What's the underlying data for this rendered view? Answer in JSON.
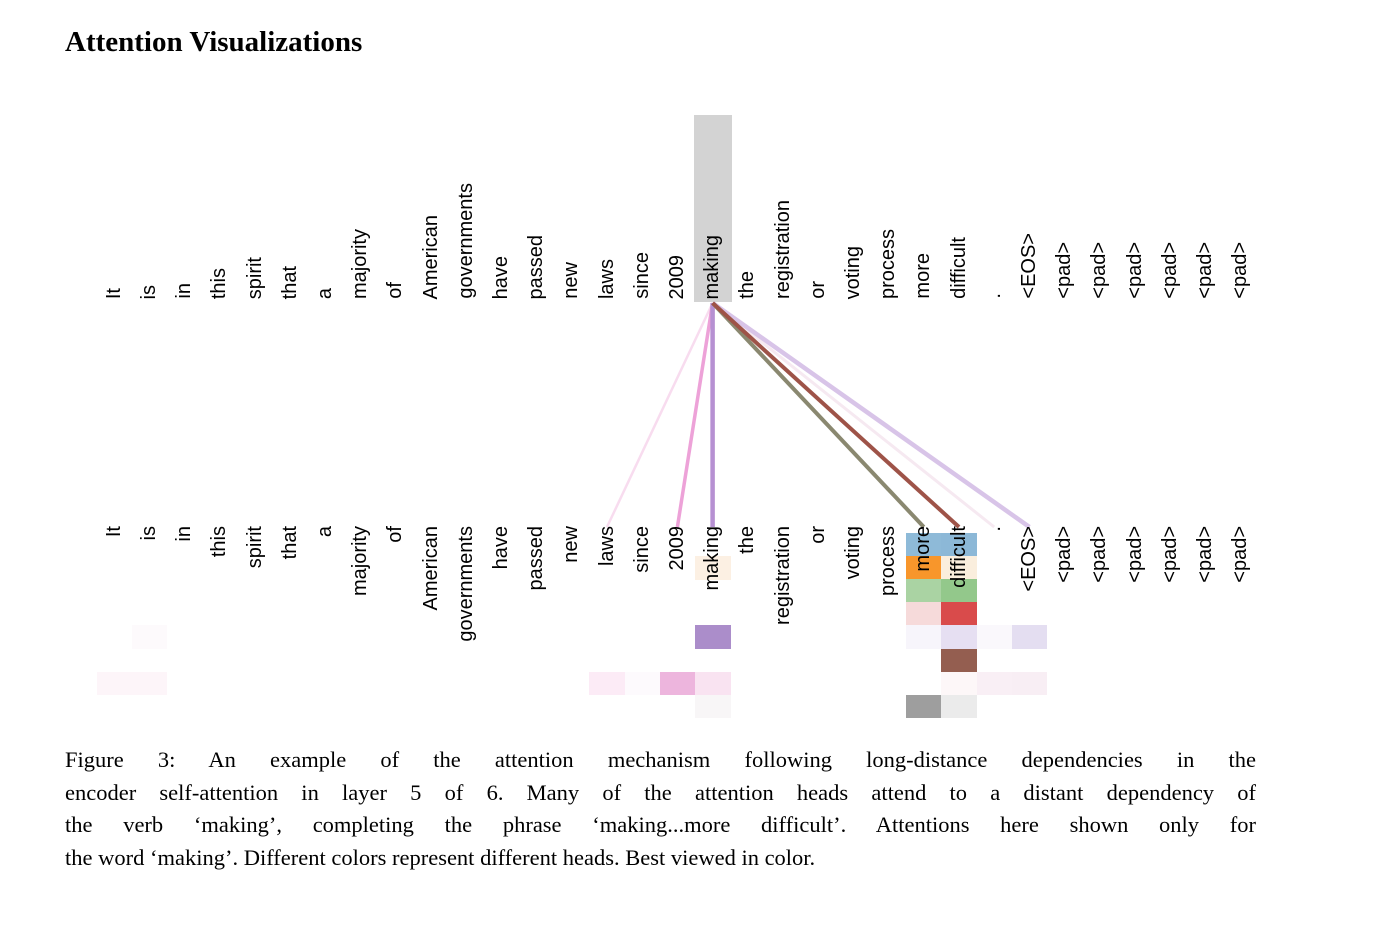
{
  "page_title": "Attention Visualizations",
  "chart_data": {
    "type": "heatmap",
    "description": "Encoder self-attention line/grid visualization for the word 'making'",
    "tokens": [
      "It",
      "is",
      "in",
      "this",
      "spirit",
      "that",
      "a",
      "majority",
      "of",
      "American",
      "governments",
      "have",
      "passed",
      "new",
      "laws",
      "since",
      "2009",
      "making",
      "the",
      "registration",
      "or",
      "voting",
      "process",
      "more",
      "difficult",
      ".",
      "<EOS>",
      "<pad>",
      "<pad>",
      "<pad>",
      "<pad>",
      "<pad>",
      "<pad>"
    ],
    "focus": {
      "token": "making",
      "index": 17,
      "highlight_color": "#d3d3d3"
    },
    "heads": [
      {
        "name": "head-1",
        "color": "#1f77b4"
      },
      {
        "name": "head-2",
        "color": "#ff7f0e"
      },
      {
        "name": "head-3",
        "color": "#2ca02c"
      },
      {
        "name": "head-4",
        "color": "#d62728"
      },
      {
        "name": "head-5",
        "color": "#9467bd"
      },
      {
        "name": "head-6",
        "color": "#8c564b"
      },
      {
        "name": "head-7",
        "color": "#e377c2"
      },
      {
        "name": "head-8",
        "color": "#7f7f7f"
      }
    ],
    "cells": [
      {
        "r": 0,
        "c": 23,
        "color": "#8ebad8"
      },
      {
        "r": 0,
        "c": 24,
        "color": "#8cb8d7"
      },
      {
        "r": 1,
        "c": 17,
        "color": "#fcf0e3"
      },
      {
        "r": 1,
        "c": 23,
        "color": "#f8962b"
      },
      {
        "r": 1,
        "c": 24,
        "color": "#faeedd"
      },
      {
        "r": 2,
        "c": 23,
        "color": "#aad3a3"
      },
      {
        "r": 2,
        "c": 24,
        "color": "#93c88b"
      },
      {
        "r": 3,
        "c": 23,
        "color": "#f6dada"
      },
      {
        "r": 3,
        "c": 24,
        "color": "#d94b4b"
      },
      {
        "r": 4,
        "c": 1,
        "color": "#fdfafc"
      },
      {
        "r": 4,
        "c": 17,
        "color": "#ab8dca"
      },
      {
        "r": 4,
        "c": 23,
        "color": "#f7f5fb"
      },
      {
        "r": 4,
        "c": 24,
        "color": "#e6dff2"
      },
      {
        "r": 4,
        "c": 25,
        "color": "#faf8fc"
      },
      {
        "r": 4,
        "c": 26,
        "color": "#e4def1"
      },
      {
        "r": 5,
        "c": 24,
        "color": "#945e50"
      },
      {
        "r": 6,
        "c": 0,
        "color": "#fdf5f9"
      },
      {
        "r": 6,
        "c": 1,
        "color": "#fdf5f9"
      },
      {
        "r": 6,
        "c": 14,
        "color": "#fcebf6"
      },
      {
        "r": 6,
        "c": 15,
        "color": "#fdfafd"
      },
      {
        "r": 6,
        "c": 16,
        "color": "#edb5dd"
      },
      {
        "r": 6,
        "c": 17,
        "color": "#f9e3f1"
      },
      {
        "r": 6,
        "c": 24,
        "color": "#fdf7f8"
      },
      {
        "r": 6,
        "c": 25,
        "color": "#f9eff5"
      },
      {
        "r": 6,
        "c": 26,
        "color": "#f8eef4"
      },
      {
        "r": 7,
        "c": 17,
        "color": "#f8f6f7"
      },
      {
        "r": 7,
        "c": 23,
        "color": "#9e9e9e"
      },
      {
        "r": 7,
        "c": 24,
        "color": "#ebebeb"
      }
    ],
    "lines": [
      {
        "from": 17,
        "to": 25,
        "to_token": ".",
        "color": "#f6e9f1",
        "width": 3
      },
      {
        "from": 17,
        "to": 14,
        "to_token": "laws",
        "color": "#f8dcef",
        "width": 2.5
      },
      {
        "from": 17,
        "to": 26,
        "to_token": "<EOS>",
        "color": "#d8c4e8",
        "width": 4.5
      },
      {
        "from": 17,
        "to": 16,
        "to_token": "2009",
        "color": "#eda2d8",
        "width": 3.5
      },
      {
        "from": 17,
        "to": 17,
        "to_token": "making",
        "color": "#b690d2",
        "width": 4.5
      },
      {
        "from": 17,
        "to": 23,
        "to_token": "more",
        "color": "#8a8870",
        "width": 4
      },
      {
        "from": 17,
        "to": 24,
        "to_token": "difficult",
        "color": "#9e5348",
        "width": 4
      }
    ]
  },
  "caption": {
    "lines": [
      "Figure 3:  An example of the attention mechanism following long-distance dependencies in the",
      "encoder self-attention in layer 5 of 6. Many of the attention heads attend to a distant dependency of",
      "the verb ‘making’, completing the phrase ‘making...more difficult’. Attentions here shown only for",
      "the word ‘making’. Different colors represent different heads. Best viewed in color."
    ]
  }
}
